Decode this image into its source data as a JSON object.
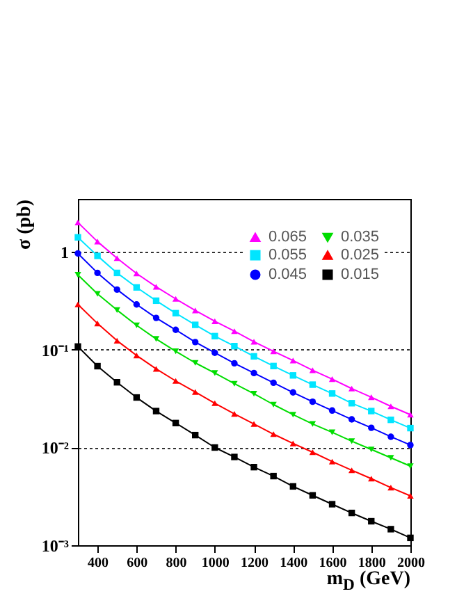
{
  "chart_data": {
    "type": "line",
    "xlabel": "m$_{D}$ (GeV)",
    "ylabel": "σ (pb)",
    "x": [
      300,
      400,
      500,
      600,
      700,
      800,
      900,
      1000,
      1100,
      1200,
      1300,
      1400,
      1500,
      1600,
      1700,
      1800,
      1900,
      2000
    ],
    "series": [
      {
        "name": "0.065",
        "color": "#ff00ff",
        "marker": "triangle",
        "values": [
          2.01,
          1.28,
          0.866,
          0.604,
          0.441,
          0.332,
          0.253,
          0.196,
          0.155,
          0.121,
          0.0965,
          0.0777,
          0.0618,
          0.0501,
          0.0401,
          0.0327,
          0.0264,
          0.0217
        ]
      },
      {
        "name": "0.055",
        "color": "#00e5ff",
        "marker": "square",
        "values": [
          1.415,
          0.915,
          0.612,
          0.435,
          0.318,
          0.237,
          0.18,
          0.138,
          0.109,
          0.0857,
          0.0682,
          0.0547,
          0.044,
          0.0357,
          0.0284,
          0.0236,
          0.0192,
          0.0158
        ]
      },
      {
        "name": "0.045",
        "color": "#0000ff",
        "marker": "circle",
        "values": [
          0.968,
          0.612,
          0.413,
          0.291,
          0.212,
          0.16,
          0.12,
          0.0933,
          0.0728,
          0.0578,
          0.046,
          0.0366,
          0.0294,
          0.0239,
          0.0194,
          0.0159,
          0.0129,
          0.0106
        ]
      },
      {
        "name": "0.035",
        "color": "#00dd00",
        "marker": "triangle-down",
        "values": [
          0.585,
          0.374,
          0.255,
          0.178,
          0.129,
          0.0965,
          0.0735,
          0.0578,
          0.045,
          0.0355,
          0.0275,
          0.0217,
          0.0174,
          0.0143,
          0.0116,
          0.00955,
          0.00785,
          0.00645
        ]
      },
      {
        "name": "0.025",
        "color": "#ff0000",
        "marker": "triangle",
        "values": [
          0.291,
          0.186,
          0.124,
          0.0875,
          0.0638,
          0.048,
          0.037,
          0.0284,
          0.0221,
          0.0174,
          0.0137,
          0.011,
          0.00895,
          0.00718,
          0.00585,
          0.0048,
          0.00389,
          0.0032
        ]
      },
      {
        "name": "0.015",
        "color": "#000000",
        "marker": "square",
        "values": [
          0.108,
          0.068,
          0.0465,
          0.0325,
          0.0236,
          0.0178,
          0.0134,
          0.01,
          0.008,
          0.0063,
          0.0051,
          0.004,
          0.00324,
          0.00263,
          0.00214,
          0.00176,
          0.00146,
          0.00119
        ]
      }
    ],
    "xlim": [
      300,
      2000
    ],
    "xticks": [
      400,
      600,
      800,
      1000,
      1200,
      1400,
      1600,
      1800,
      2000
    ],
    "ylim": [
      0.001,
      3.5
    ],
    "yticks": [
      {
        "value": 0.001,
        "label": "10⁻³"
      },
      {
        "value": 0.01,
        "label": "10⁻²"
      },
      {
        "value": 0.1,
        "label": "10⁻¹"
      },
      1
    ],
    "log": "y",
    "grid": "y",
    "legend": "top right",
    "line_style": "solid"
  }
}
